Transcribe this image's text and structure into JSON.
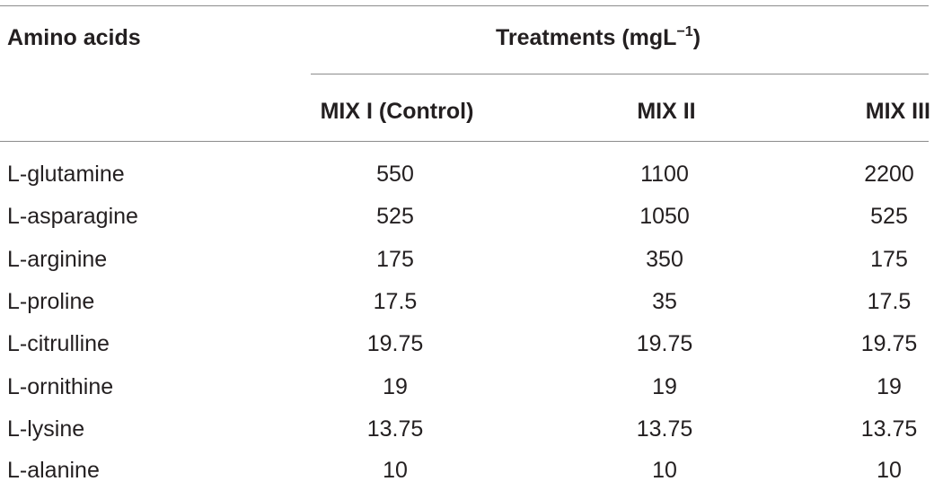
{
  "table": {
    "header": {
      "amino_acids": "Amino acids",
      "treatments_prefix": "Treatments (mgL",
      "treatments_exponent": "−1",
      "treatments_suffix": ")",
      "columns": [
        "MIX I (Control)",
        "MIX II",
        "MIX III"
      ]
    },
    "rows": [
      {
        "name": "L-glutamine",
        "values": [
          "550",
          "1100",
          "2200"
        ]
      },
      {
        "name": "L-asparagine",
        "values": [
          "525",
          "1050",
          "525"
        ]
      },
      {
        "name": "L-arginine",
        "values": [
          "175",
          "350",
          "175"
        ]
      },
      {
        "name": "L-proline",
        "values": [
          "17.5",
          "35",
          "17.5"
        ]
      },
      {
        "name": "L-citrulline",
        "values": [
          "19.75",
          "19.75",
          "19.75"
        ]
      },
      {
        "name": "L-ornithine",
        "values": [
          "19",
          "19",
          "19"
        ]
      },
      {
        "name": "L-lysine",
        "values": [
          "13.75",
          "13.75",
          "13.75"
        ]
      },
      {
        "name": "L-alanine",
        "values": [
          "10",
          "10",
          "10"
        ]
      }
    ]
  }
}
